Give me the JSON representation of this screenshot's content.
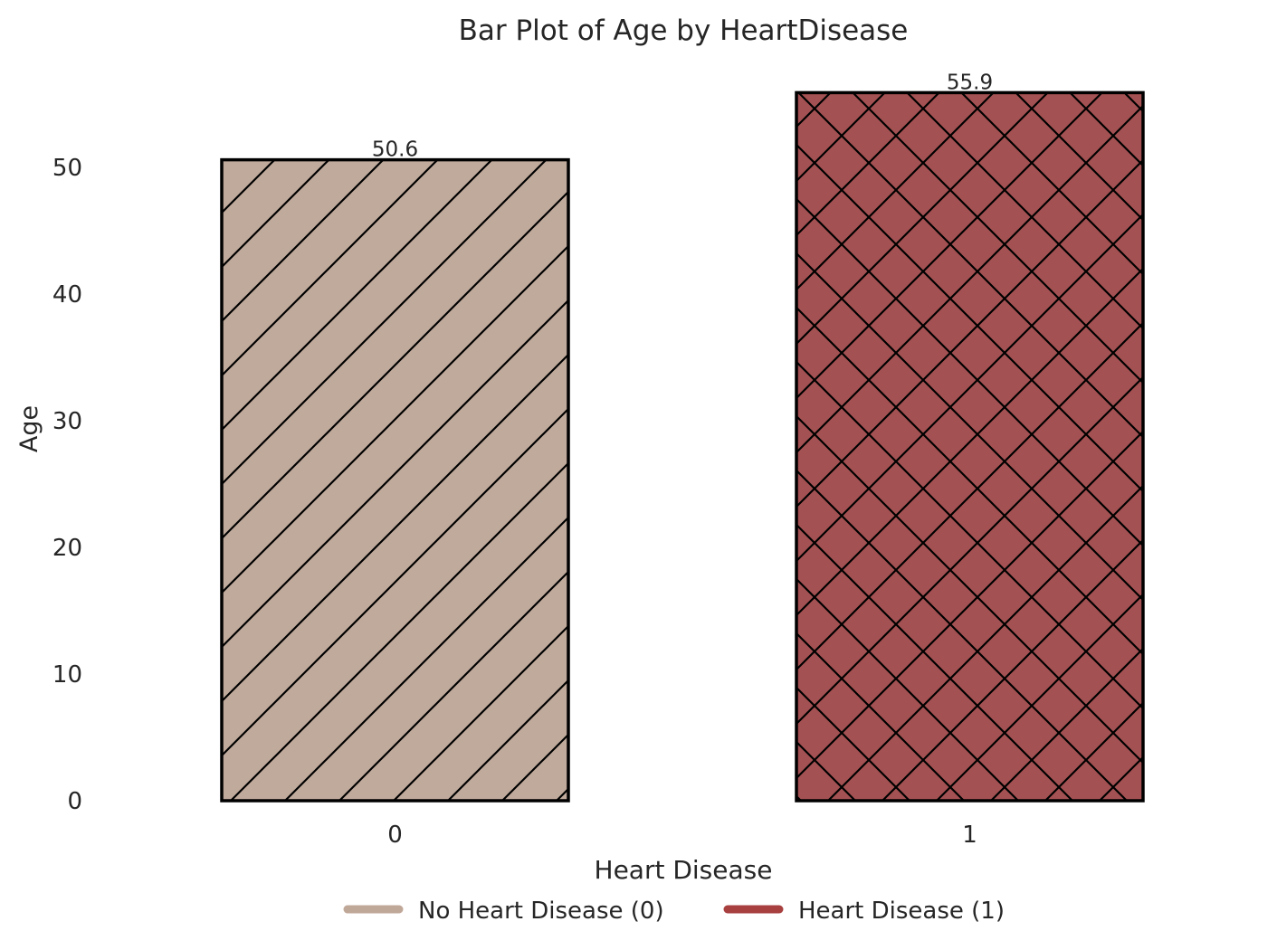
{
  "chart_data": {
    "type": "bar",
    "title": "Bar Plot of Age by HeartDisease",
    "xlabel": "Heart Disease",
    "ylabel": "Age",
    "categories": [
      "0",
      "1"
    ],
    "values": [
      50.6,
      55.9
    ],
    "value_labels": [
      "50.6",
      "55.9"
    ],
    "ylim": [
      0,
      56.5
    ],
    "yticks": [
      0,
      10,
      20,
      30,
      40,
      50
    ],
    "ytick_labels": [
      "0",
      "10",
      "20",
      "30",
      "40",
      "50"
    ],
    "grid": false,
    "legend_position": "bottom-center",
    "legend": [
      {
        "label": "No Heart Disease (0)",
        "color": "#c0a899"
      },
      {
        "label": "Heart Disease (1)",
        "color": "#a84040"
      }
    ],
    "bar_colors": [
      "#c0aa9c",
      "#a45153"
    ],
    "bar_hatches": [
      "/",
      "x"
    ],
    "edge_color": "#000000"
  }
}
